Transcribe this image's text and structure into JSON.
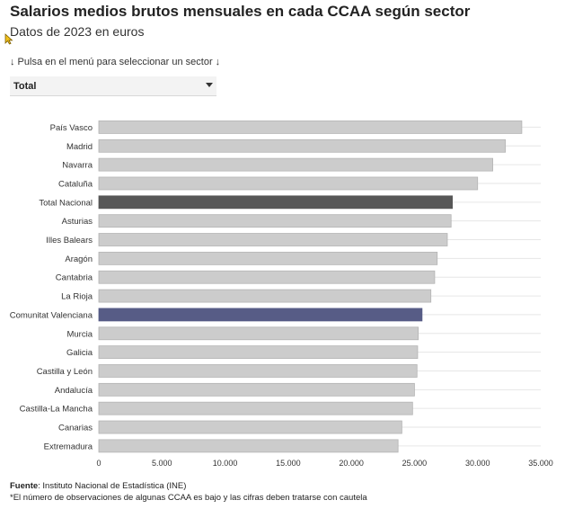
{
  "header": {
    "title": "Salarios medios brutos mensuales en cada CCAA según sector",
    "subtitle": "Datos de 2023 en euros",
    "hint": "↓ Pulsa en el menú para seleccionar un sector ↓"
  },
  "selector": {
    "value": "Total"
  },
  "footer": {
    "source_label": "Fuente",
    "source_text": ": Instituto Nacional de Estadística (INE)",
    "note": "*El número de observaciones de algunas CCAA es bajo y las cifras deben tratarse con cautela"
  },
  "colors": {
    "default": "#cccccc",
    "national": "#575757",
    "highlight": "#575c86",
    "grid": "#e6e6e6"
  },
  "chart_data": {
    "type": "bar",
    "orientation": "horizontal",
    "categories": [
      "País Vasco",
      "Madrid",
      "Navarra",
      "Cataluña",
      "Total Nacional",
      "Asturias",
      "Illes Balears",
      "Aragón",
      "Cantabria",
      "La Rioja",
      "Comunitat Valenciana",
      "Murcia",
      "Galicia",
      "Castilla y León",
      "Andalucía",
      "Castilla-La Mancha",
      "Canarias",
      "Extremadura"
    ],
    "values": [
      33500,
      32200,
      31200,
      30000,
      28000,
      27900,
      27600,
      26800,
      26600,
      26300,
      25600,
      25300,
      25250,
      25200,
      25000,
      24850,
      24000,
      23700
    ],
    "highlight": {
      "Total Nacional": "national",
      "Comunitat Valenciana": "highlight"
    },
    "xlim": [
      0,
      35000
    ],
    "xticks": [
      0,
      5000,
      10000,
      15000,
      20000,
      25000,
      30000,
      35000
    ],
    "xtick_labels": [
      "0",
      "5.000",
      "10.000",
      "15.000",
      "20.000",
      "25.000",
      "30.000",
      "35.000"
    ],
    "grid": true
  }
}
